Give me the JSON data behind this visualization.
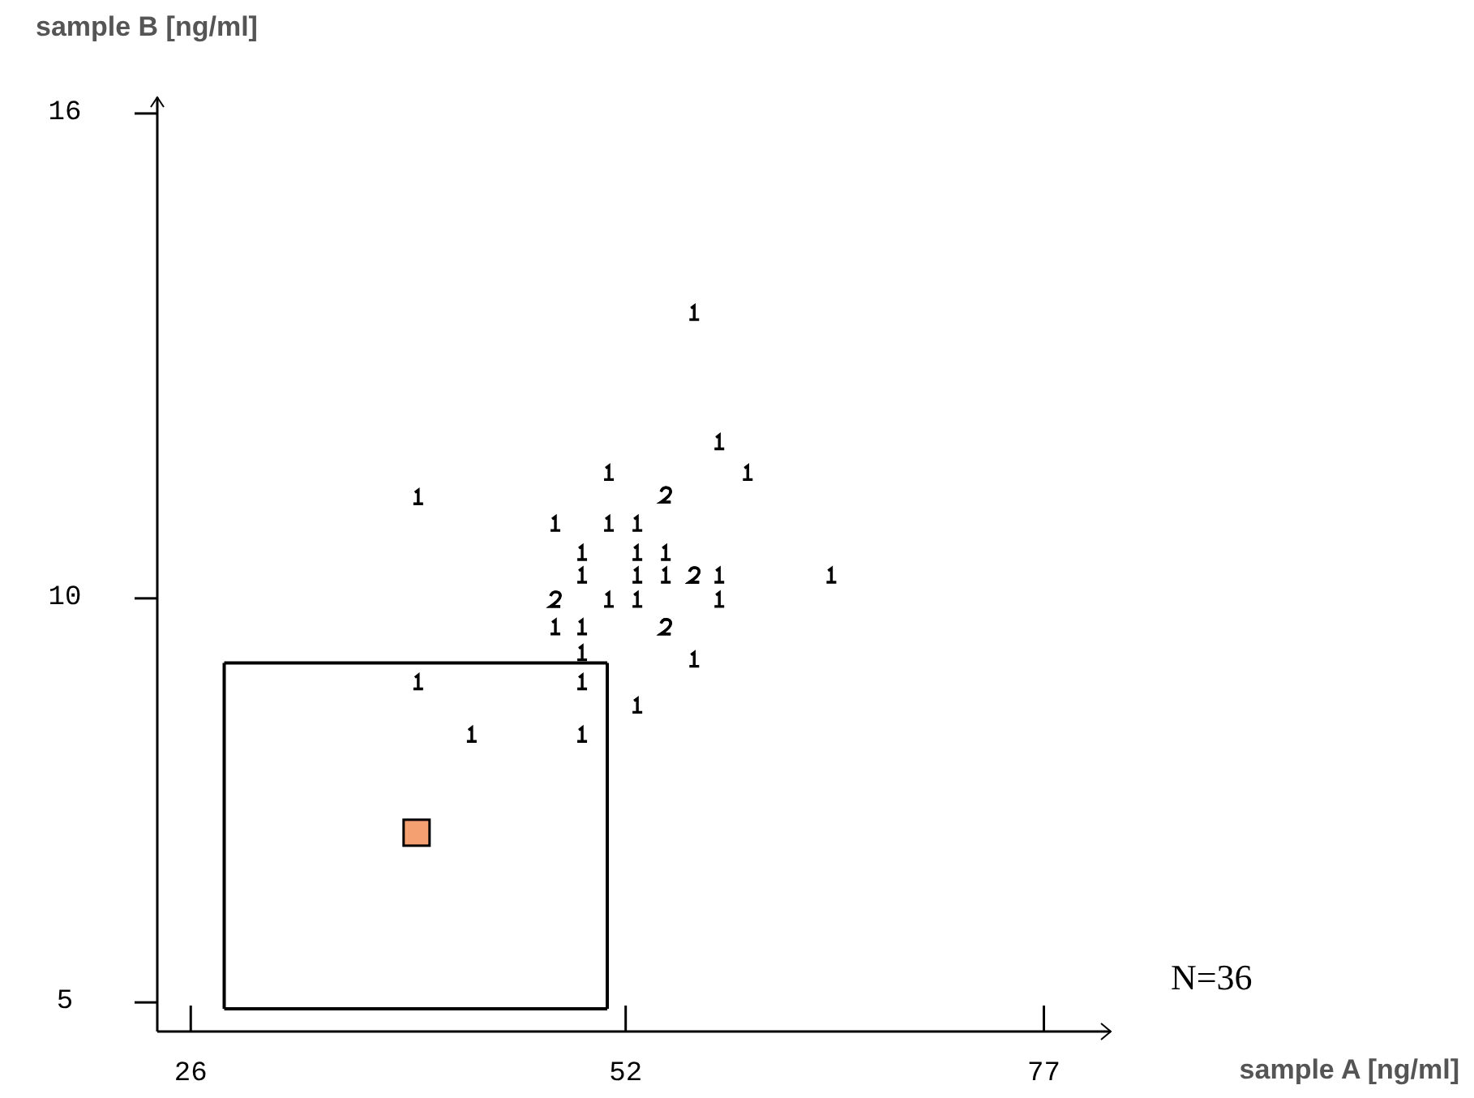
{
  "chart_data": {
    "type": "scatter",
    "xlabel": "sample A [ng/ml]",
    "ylabel": "sample B [ng/ml]",
    "xlim": [
      24,
      81
    ],
    "ylim": [
      4.64,
      16.2
    ],
    "xticks": [
      26,
      52,
      77
    ],
    "yticks": [
      5,
      10,
      16
    ],
    "grid": false,
    "annotations": [
      "N=36"
    ],
    "series": [
      {
        "color": "#000000",
        "x": [
          56.1,
          57.6,
          59.3,
          51.0,
          39.6,
          54.4,
          54.4,
          47.8,
          51.0,
          52.7,
          49.4,
          52.7,
          54.4,
          49.4,
          52.7,
          54.4,
          56.1,
          56.1,
          57.6,
          64.3,
          47.8,
          47.8,
          51.0,
          52.7,
          57.6,
          47.8,
          49.4,
          54.4,
          54.4,
          49.4,
          56.1,
          39.6,
          49.4,
          52.7,
          42.8,
          49.4
        ],
        "values": [
          13.53,
          11.93,
          11.55,
          11.55,
          11.25,
          11.27,
          11.27,
          10.92,
          10.92,
          10.92,
          10.56,
          10.56,
          10.56,
          10.28,
          10.28,
          10.28,
          10.28,
          10.28,
          10.28,
          10.28,
          9.98,
          9.98,
          9.98,
          9.98,
          9.98,
          9.64,
          9.64,
          9.64,
          9.64,
          9.32,
          9.24,
          8.96,
          8.96,
          8.67,
          8.31,
          8.31
        ]
      },
      {
        "type": "line",
        "color": "#000000",
        "x": [
          28.0,
          50.9
        ],
        "values": [
          4.92,
          4.92
        ]
      },
      {
        "type": "line",
        "color": "#000000",
        "x": [
          28.0,
          50.9
        ],
        "values": [
          9.2,
          9.2
        ]
      },
      {
        "type": "line",
        "color": "#000000",
        "x": [
          28.0,
          28.0
        ],
        "values": [
          4.92,
          9.2
        ]
      },
      {
        "type": "line",
        "color": "#000000",
        "x": [
          50.9,
          50.9
        ],
        "values": [
          4.92,
          9.2
        ]
      },
      {
        "marker": "square",
        "color": "#f4a070",
        "x": [
          39.5
        ],
        "values": [
          7.1
        ]
      }
    ]
  }
}
